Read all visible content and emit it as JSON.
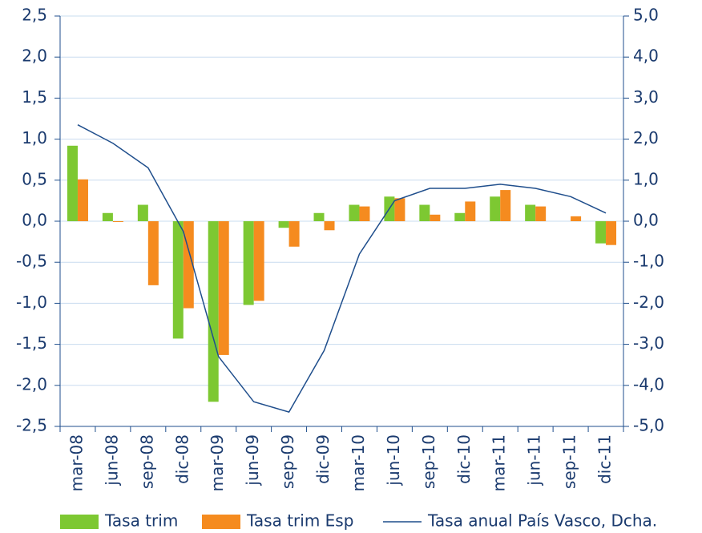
{
  "chart_data": {
    "type": "bar",
    "categories": [
      "mar-08",
      "jun-08",
      "sep-08",
      "dic-08",
      "mar-09",
      "jun-09",
      "sep-09",
      "dic-09",
      "mar-10",
      "jun-10",
      "sep-10",
      "dic-10",
      "mar-11",
      "jun-11",
      "sep-11",
      "dic-11"
    ],
    "series": [
      {
        "name": "Tasa trim",
        "color": "#7dc832",
        "type": "bar",
        "values": [
          0.92,
          0.1,
          0.2,
          -1.43,
          -2.2,
          -1.02,
          -0.08,
          0.1,
          0.2,
          0.3,
          0.2,
          0.1,
          0.3,
          0.2,
          0.0,
          -0.27
        ]
      },
      {
        "name": "Tasa trim Esp",
        "color": "#f58b1f",
        "type": "bar",
        "values": [
          0.51,
          -0.01,
          -0.78,
          -1.06,
          -1.63,
          -0.97,
          -0.31,
          -0.11,
          0.18,
          0.28,
          0.08,
          0.24,
          0.38,
          0.18,
          0.06,
          -0.29
        ]
      },
      {
        "name": "Tasa anual País Vasco, Dcha.",
        "color": "#1f4e8c",
        "type": "line",
        "axis": "y2",
        "values": [
          2.35,
          1.9,
          1.3,
          -0.25,
          -3.3,
          -4.4,
          -4.65,
          -3.15,
          -0.8,
          0.5,
          0.8,
          0.8,
          0.9,
          0.8,
          0.6,
          0.2
        ]
      }
    ],
    "ylim": [
      -2.5,
      2.5
    ],
    "yticks": [
      {
        "value": 2.5,
        "label": "2,5"
      },
      {
        "value": 2,
        "label": "2,0"
      },
      {
        "value": 1.5,
        "label": "1,5"
      },
      {
        "value": 1,
        "label": "1,0"
      },
      {
        "value": 0.5,
        "label": "0,5"
      },
      {
        "value": 0,
        "label": "0,0"
      },
      {
        "value": -0.5,
        "label": "-0,5"
      },
      {
        "value": -1,
        "label": "-1,0"
      },
      {
        "value": -1.5,
        "label": "-1,5"
      },
      {
        "value": -2,
        "label": "-2,0"
      },
      {
        "value": -2.5,
        "label": "-2,5"
      }
    ],
    "y2lim": [
      -5,
      5
    ],
    "y2ticks": [
      {
        "value": 5,
        "label": "5,0"
      },
      {
        "value": 4,
        "label": "4,0"
      },
      {
        "value": 3,
        "label": "3,0"
      },
      {
        "value": 2,
        "label": "2,0"
      },
      {
        "value": 1,
        "label": "1,0"
      },
      {
        "value": 0,
        "label": "0,0"
      },
      {
        "value": -1,
        "label": "-1,0"
      },
      {
        "value": -2,
        "label": "-2,0"
      },
      {
        "value": -3,
        "label": "-3,0"
      },
      {
        "value": -4,
        "label": "-4,0"
      },
      {
        "value": -5,
        "label": "-5,0"
      }
    ],
    "grid": true
  }
}
